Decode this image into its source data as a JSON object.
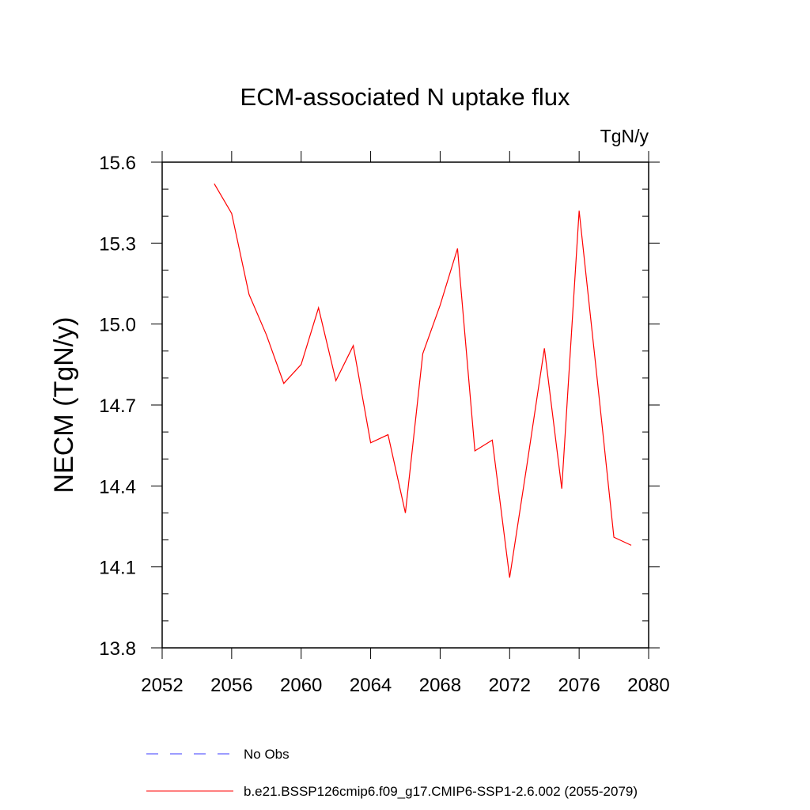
{
  "chart_data": {
    "type": "line",
    "title": "ECM-associated N uptake flux",
    "units_label": "TgN/y",
    "xlabel": "",
    "ylabel": "NECM  (TgN/y)",
    "xlim": [
      2052,
      2080
    ],
    "ylim": [
      13.8,
      15.6
    ],
    "xticks": [
      2052,
      2056,
      2060,
      2064,
      2068,
      2072,
      2076,
      2080
    ],
    "xtick_labels": [
      "2052",
      "2056",
      "2060",
      "2064",
      "2068",
      "2072",
      "2076",
      "2080"
    ],
    "yticks": [
      13.8,
      14.1,
      14.4,
      14.7,
      15.0,
      15.3,
      15.6
    ],
    "ytick_labels": [
      "13.8",
      "14.1",
      "14.4",
      "14.7",
      "15.0",
      "15.3",
      "15.6"
    ],
    "grid": false,
    "legend_position": "bottom",
    "series": [
      {
        "name": "b.e21.BSSP126cmip6.f09_g17.CMIP6-SSP1-2.6.002 (2055-2079)",
        "color": "#ff0000",
        "dash": "solid",
        "x": [
          2055,
          2056,
          2057,
          2058,
          2059,
          2060,
          2061,
          2062,
          2063,
          2064,
          2065,
          2066,
          2067,
          2068,
          2069,
          2070,
          2071,
          2072,
          2073,
          2074,
          2075,
          2076,
          2077,
          2078,
          2079
        ],
        "y": [
          15.52,
          15.41,
          15.11,
          14.96,
          14.78,
          14.85,
          15.06,
          14.79,
          14.92,
          14.56,
          14.59,
          14.3,
          14.89,
          15.07,
          15.28,
          14.53,
          14.57,
          14.06,
          14.48,
          14.91,
          14.39,
          15.42,
          14.82,
          14.21,
          14.18
        ]
      }
    ],
    "legend": [
      {
        "label": "No Obs",
        "color": "#3a3aff",
        "dash": "dashed"
      },
      {
        "label": "b.e21.BSSP126cmip6.f09_g17.CMIP6-SSP1-2.6.002 (2055-2079)",
        "color": "#ff0000",
        "dash": "solid"
      }
    ]
  }
}
